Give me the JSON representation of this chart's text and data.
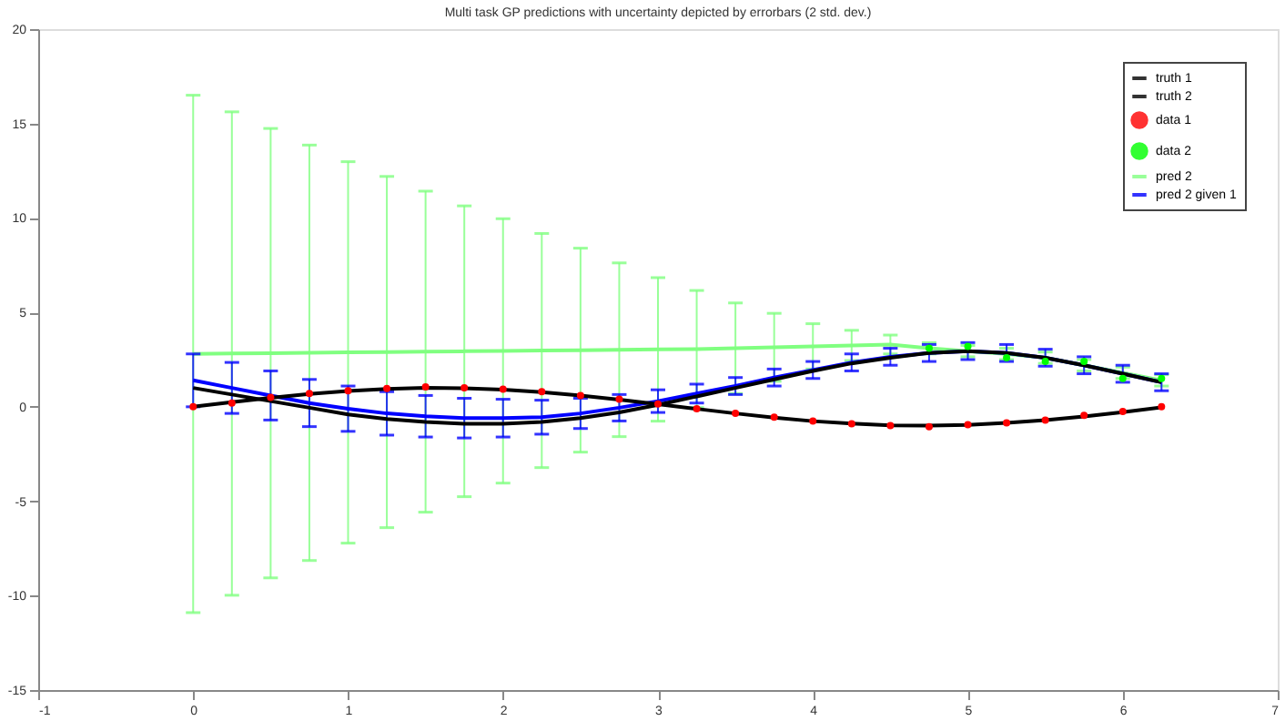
{
  "chart_data": {
    "type": "line",
    "title": "Multi task GP predictions with uncertainty depicted by errorbars (2 std. dev.)",
    "xlim": [
      -1,
      7
    ],
    "xticks": [
      -1,
      0,
      1,
      2,
      3,
      4,
      5,
      6,
      7
    ],
    "ylim": [
      -15,
      20
    ],
    "yticks": [
      -15,
      -10,
      -5,
      0,
      5,
      10,
      15,
      20
    ],
    "grid": false,
    "legend": "top right",
    "series": [
      {
        "name": "truth 1",
        "color": "#000000",
        "marker": "none",
        "x": [
          0,
          0.25,
          0.5,
          0.75,
          1,
          1.25,
          1.5,
          1.75,
          2,
          2.25,
          2.5,
          2.75,
          3,
          3.25,
          3.5,
          3.75,
          4,
          4.25,
          4.5,
          4.75,
          5,
          5.25,
          5.5,
          5.75,
          6,
          6.25
        ],
        "values": [
          0,
          0.25,
          0.48,
          0.68,
          0.84,
          0.95,
          1.0,
          0.98,
          0.91,
          0.78,
          0.6,
          0.38,
          0.14,
          -0.11,
          -0.35,
          -0.57,
          -0.76,
          -0.89,
          -0.98,
          -1.0,
          -0.96,
          -0.85,
          -0.71,
          -0.51,
          -0.28,
          -0.03
        ]
      },
      {
        "name": "truth 2",
        "color": "#000000",
        "marker": "none",
        "x": [
          0,
          0.25,
          0.5,
          0.75,
          1,
          1.25,
          1.5,
          1.75,
          2,
          2.25,
          2.5,
          2.75,
          3,
          3.25,
          3.5,
          3.75,
          4,
          4.25,
          4.5,
          4.75,
          5,
          5.25,
          5.5,
          5.75,
          6,
          6.25
        ],
        "values": [
          1.0,
          0.65,
          0.3,
          -0.05,
          -0.4,
          -0.65,
          -0.8,
          -0.9,
          -0.9,
          -0.8,
          -0.6,
          -0.3,
          0.1,
          0.55,
          1.0,
          1.45,
          1.9,
          2.3,
          2.6,
          2.85,
          2.95,
          2.85,
          2.6,
          2.2,
          1.75,
          1.3
        ]
      },
      {
        "name": "data 1",
        "type": "scatter",
        "color": "#ff0000",
        "marker": "circle",
        "x": [
          0,
          0.25,
          0.5,
          0.75,
          1,
          1.25,
          1.5,
          1.75,
          2,
          2.25,
          2.5,
          2.75,
          3,
          3.25,
          3.5,
          3.75,
          4,
          4.25,
          4.5,
          4.75,
          5,
          5.25,
          5.5,
          5.75,
          6,
          6.25
        ],
        "values": [
          0.0,
          0.2,
          0.5,
          0.7,
          0.85,
          0.97,
          1.05,
          1.0,
          0.93,
          0.8,
          0.6,
          0.4,
          0.15,
          -0.1,
          -0.35,
          -0.55,
          -0.75,
          -0.9,
          -1.0,
          -1.05,
          -0.95,
          -0.85,
          -0.7,
          -0.45,
          -0.25,
          0.0
        ]
      },
      {
        "name": "data 2",
        "type": "scatter",
        "color": "#00ff00",
        "marker": "circle",
        "x": [
          4.75,
          5,
          5.25,
          5.5,
          5.75,
          6,
          6.25
        ],
        "values": [
          3.1,
          3.2,
          2.6,
          2.4,
          2.4,
          1.5,
          1.5
        ]
      },
      {
        "name": "pred 2",
        "color": "#80ff80",
        "marker": "none",
        "x": [
          0,
          0.25,
          0.5,
          0.75,
          1,
          1.25,
          1.5,
          1.75,
          2,
          2.25,
          2.5,
          2.75,
          3,
          3.25,
          3.5,
          3.75,
          4,
          4.25,
          4.5,
          4.75,
          5,
          5.25,
          5.5,
          5.75,
          6,
          6.25
        ],
        "values": [
          2.8,
          2.82,
          2.84,
          2.86,
          2.88,
          2.9,
          2.92,
          2.94,
          2.96,
          2.98,
          3.0,
          3.02,
          3.04,
          3.06,
          3.1,
          3.15,
          3.2,
          3.25,
          3.3,
          3.1,
          2.95,
          2.8,
          2.6,
          2.2,
          1.8,
          1.4
        ],
        "errors": [
          13.7,
          12.8,
          11.9,
          11.0,
          10.1,
          9.3,
          8.5,
          7.7,
          7.0,
          6.2,
          5.4,
          4.6,
          3.8,
          3.1,
          2.4,
          1.8,
          1.2,
          0.8,
          0.5,
          0.3,
          0.3,
          0.3,
          0.3,
          0.3,
          0.3,
          0.3
        ]
      },
      {
        "name": "pred 2 given 1",
        "color": "#0000ff",
        "marker": "none",
        "x": [
          0,
          0.25,
          0.5,
          0.75,
          1,
          1.25,
          1.5,
          1.75,
          2,
          2.25,
          2.5,
          2.75,
          3,
          3.25,
          3.5,
          3.75,
          4,
          4.25,
          4.5,
          4.75,
          5,
          5.25,
          5.5,
          5.75,
          6,
          6.25
        ],
        "values": [
          1.4,
          1.0,
          0.6,
          0.2,
          -0.1,
          -0.35,
          -0.5,
          -0.6,
          -0.6,
          -0.55,
          -0.35,
          -0.05,
          0.3,
          0.7,
          1.1,
          1.55,
          1.95,
          2.35,
          2.65,
          2.85,
          2.95,
          2.85,
          2.6,
          2.2,
          1.75,
          1.3
        ],
        "errors": [
          1.4,
          1.35,
          1.3,
          1.25,
          1.2,
          1.15,
          1.1,
          1.05,
          1.0,
          0.9,
          0.8,
          0.7,
          0.6,
          0.5,
          0.45,
          0.45,
          0.45,
          0.45,
          0.45,
          0.45,
          0.45,
          0.45,
          0.45,
          0.45,
          0.45,
          0.45
        ]
      }
    ]
  }
}
